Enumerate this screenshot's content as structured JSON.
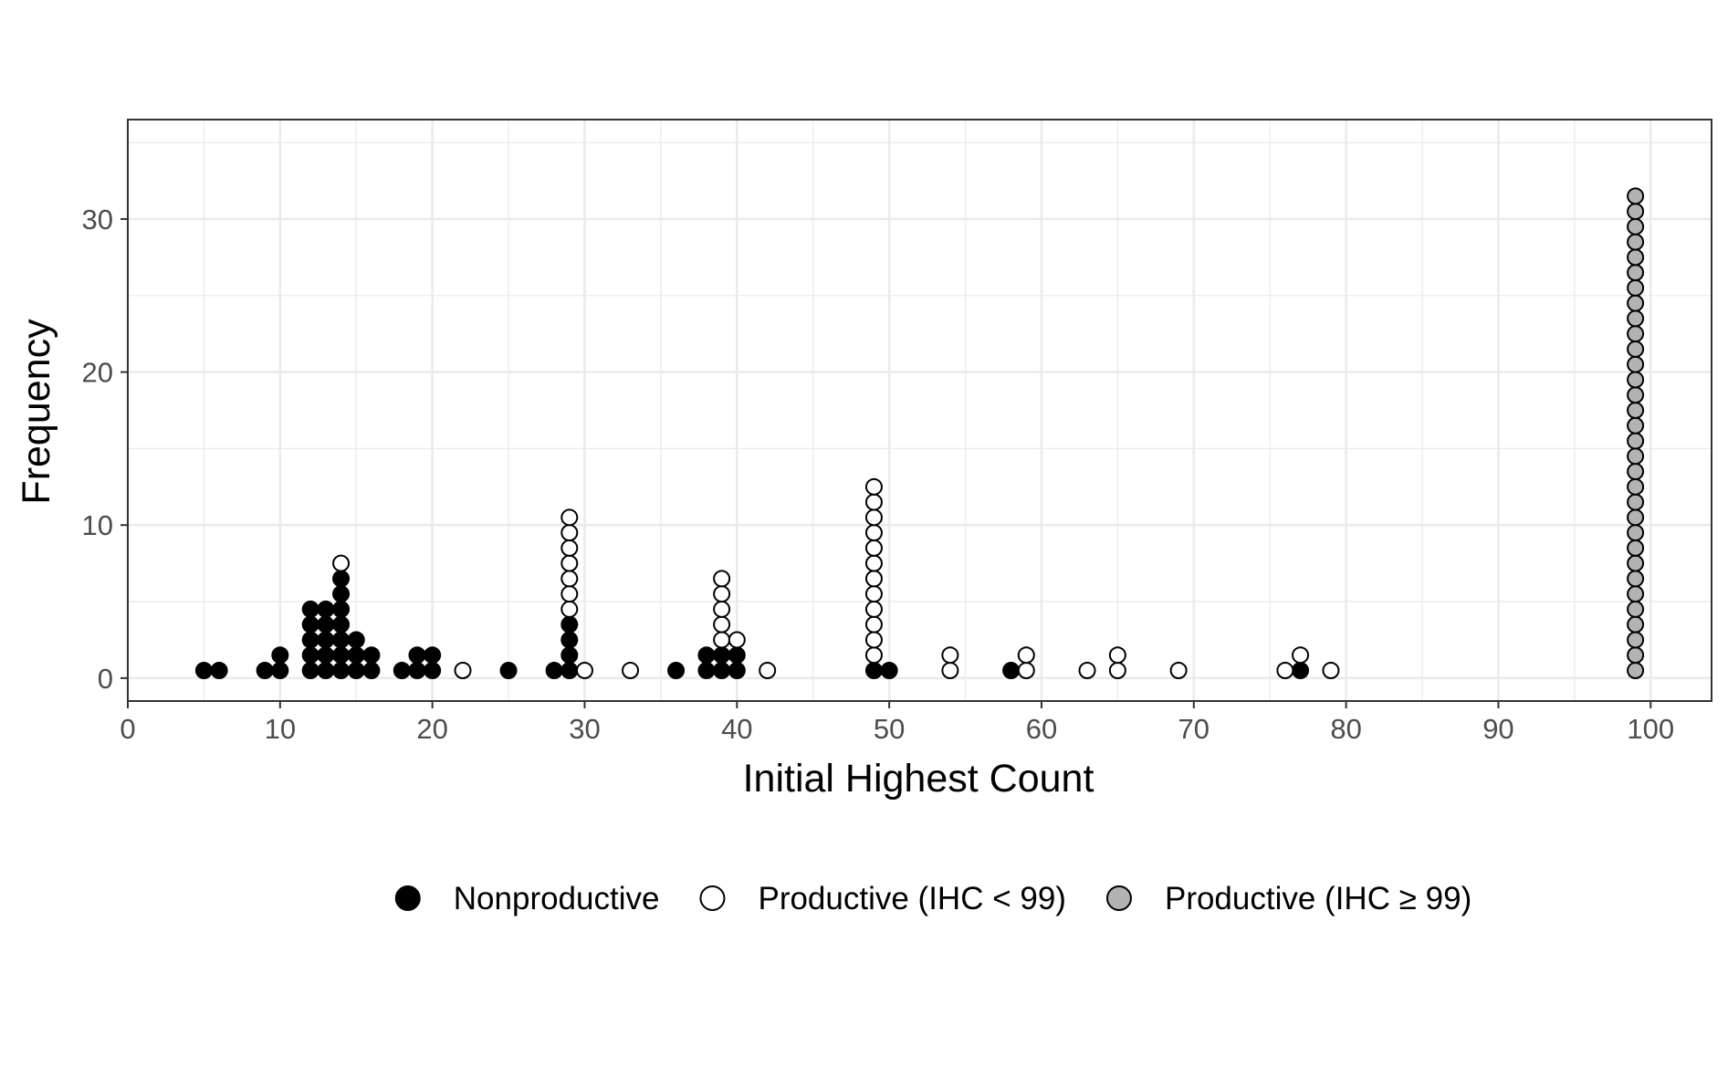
{
  "chart_data": {
    "type": "dotplot",
    "xlabel": "Initial Highest Count",
    "ylabel": "Frequency",
    "xlim": [
      0,
      104
    ],
    "ylim": [
      -1.5,
      36.5
    ],
    "x_ticks": [
      "0",
      "10",
      "20",
      "30",
      "40",
      "50",
      "60",
      "70",
      "80",
      "90",
      "100"
    ],
    "y_ticks": [
      "0",
      "10",
      "20",
      "30"
    ],
    "grid": true,
    "legend_position": "bottom",
    "colors": {
      "grid": "#ebebeb",
      "panel_border": "#333333",
      "axis_text": "#4d4d4d"
    },
    "series": [
      {
        "name": "Nonproductive",
        "fill": "#000000",
        "dots": [
          {
            "x": 5,
            "count": 1
          },
          {
            "x": 6,
            "count": 1
          },
          {
            "x": 9,
            "count": 1
          },
          {
            "x": 10,
            "count": 2
          },
          {
            "x": 12,
            "count": 5
          },
          {
            "x": 13,
            "count": 5
          },
          {
            "x": 14,
            "count": 7
          },
          {
            "x": 15,
            "count": 3
          },
          {
            "x": 16,
            "count": 2
          },
          {
            "x": 18,
            "count": 1
          },
          {
            "x": 19,
            "count": 2
          },
          {
            "x": 20,
            "count": 2
          },
          {
            "x": 25,
            "count": 1
          },
          {
            "x": 28,
            "count": 1
          },
          {
            "x": 29,
            "count": 4
          },
          {
            "x": 36,
            "count": 1
          },
          {
            "x": 38,
            "count": 2
          },
          {
            "x": 39,
            "count": 2
          },
          {
            "x": 40,
            "count": 2
          },
          {
            "x": 49,
            "count": 1
          },
          {
            "x": 50,
            "count": 1
          },
          {
            "x": 58,
            "count": 1
          },
          {
            "x": 77,
            "count": 1
          }
        ]
      },
      {
        "name": "Productive (IHC < 99)",
        "fill": "#ffffff",
        "dots": [
          {
            "x": 14,
            "count": 1
          },
          {
            "x": 22,
            "count": 1
          },
          {
            "x": 29,
            "count": 7
          },
          {
            "x": 30,
            "count": 1
          },
          {
            "x": 33,
            "count": 1
          },
          {
            "x": 39,
            "count": 5
          },
          {
            "x": 40,
            "count": 1
          },
          {
            "x": 42,
            "count": 1
          },
          {
            "x": 49,
            "count": 12
          },
          {
            "x": 54,
            "count": 2
          },
          {
            "x": 59,
            "count": 2
          },
          {
            "x": 63,
            "count": 1
          },
          {
            "x": 65,
            "count": 2
          },
          {
            "x": 69,
            "count": 1
          },
          {
            "x": 76,
            "count": 1
          },
          {
            "x": 77,
            "count": 1
          },
          {
            "x": 79,
            "count": 1
          }
        ]
      },
      {
        "name": "Productive (IHC ≥ 99)",
        "fill": "#b3b3b3",
        "dots": [
          {
            "x": 99,
            "count": 32
          }
        ]
      }
    ]
  }
}
